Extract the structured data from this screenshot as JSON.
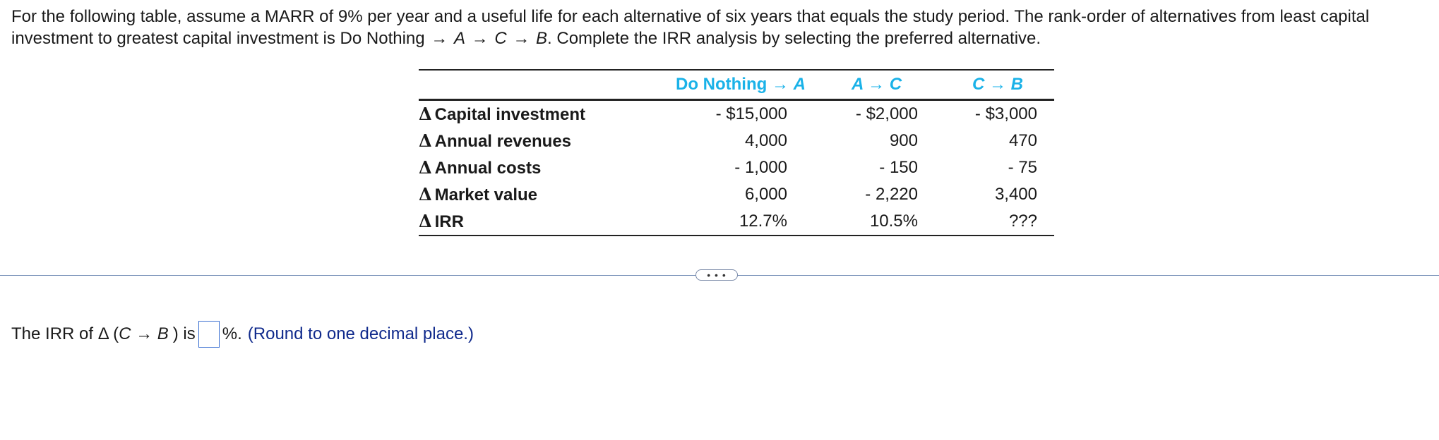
{
  "intro": {
    "part1": "For the following table, assume a MARR of 9% per year and a useful life for each alternative of six years that equals the study period. The rank-order of alternatives from least capital investment to greatest capital investment is Do Nothing",
    "arrow": "→",
    "alt_a": "A",
    "alt_c": "C",
    "alt_b": "B",
    "part2": ". Complete the IRR analysis by selecting the preferred alternative."
  },
  "table": {
    "headers": [
      {
        "pre": "Do Nothing → ",
        "alt": "A"
      },
      {
        "pre": "",
        "alt": "A → C"
      },
      {
        "pre": "",
        "alt": "C → B"
      }
    ],
    "delta_symbol": "Δ",
    "rows": [
      {
        "label": "Capital investment",
        "values": [
          "- $15,000",
          "- $2,000",
          "- $3,000"
        ]
      },
      {
        "label": "Annual revenues",
        "values": [
          "4,000",
          "900",
          "470"
        ]
      },
      {
        "label": "Annual costs",
        "values": [
          "- 1,000",
          "- 150",
          "- 75"
        ]
      },
      {
        "label": "Market value",
        "values": [
          "6,000",
          "- 2,220",
          "3,400"
        ]
      },
      {
        "label": "IRR",
        "values": [
          "12.7%",
          "10.5%",
          "???"
        ]
      }
    ]
  },
  "more_button": "• • •",
  "question": {
    "prefix": "The IRR of Δ (",
    "pair": "C → B",
    "mid": ") is",
    "answer_value": "",
    "suffix": "%.",
    "hint": "(Round to one decimal place.)"
  },
  "colors": {
    "header_accent": "#1ab2e8",
    "hint_text": "#102a8c",
    "input_border": "#3a6fd1",
    "divider": "#6a86b0"
  }
}
